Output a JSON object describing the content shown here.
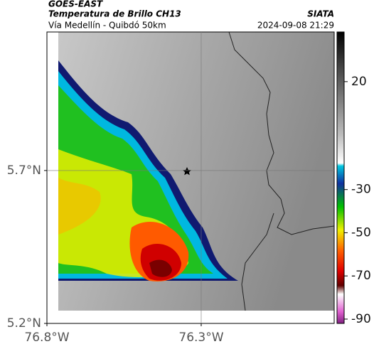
{
  "header": {
    "title": "GOES-EAST",
    "subtitle": "Temperatura de Brillo CH13",
    "region": "Vía Medellín - Quibdó 50km",
    "source": "SIATA",
    "timestamp": "2024-09-08 21:29"
  },
  "map": {
    "xlim": [
      -76.8,
      -75.869
    ],
    "ylim": [
      5.2,
      6.153
    ],
    "xticks": [
      {
        "value": -76.8,
        "label": "76.8°W"
      },
      {
        "value": -76.3,
        "label": "76.3°W"
      }
    ],
    "yticks": [
      {
        "value": 5.2,
        "label": "5.2°N"
      },
      {
        "value": 5.7,
        "label": "5.7°N"
      }
    ]
  },
  "colorbar": {
    "lim": [
      -92,
      43
    ],
    "ticks": [
      20,
      -30,
      -50,
      -70,
      -90
    ]
  }
}
